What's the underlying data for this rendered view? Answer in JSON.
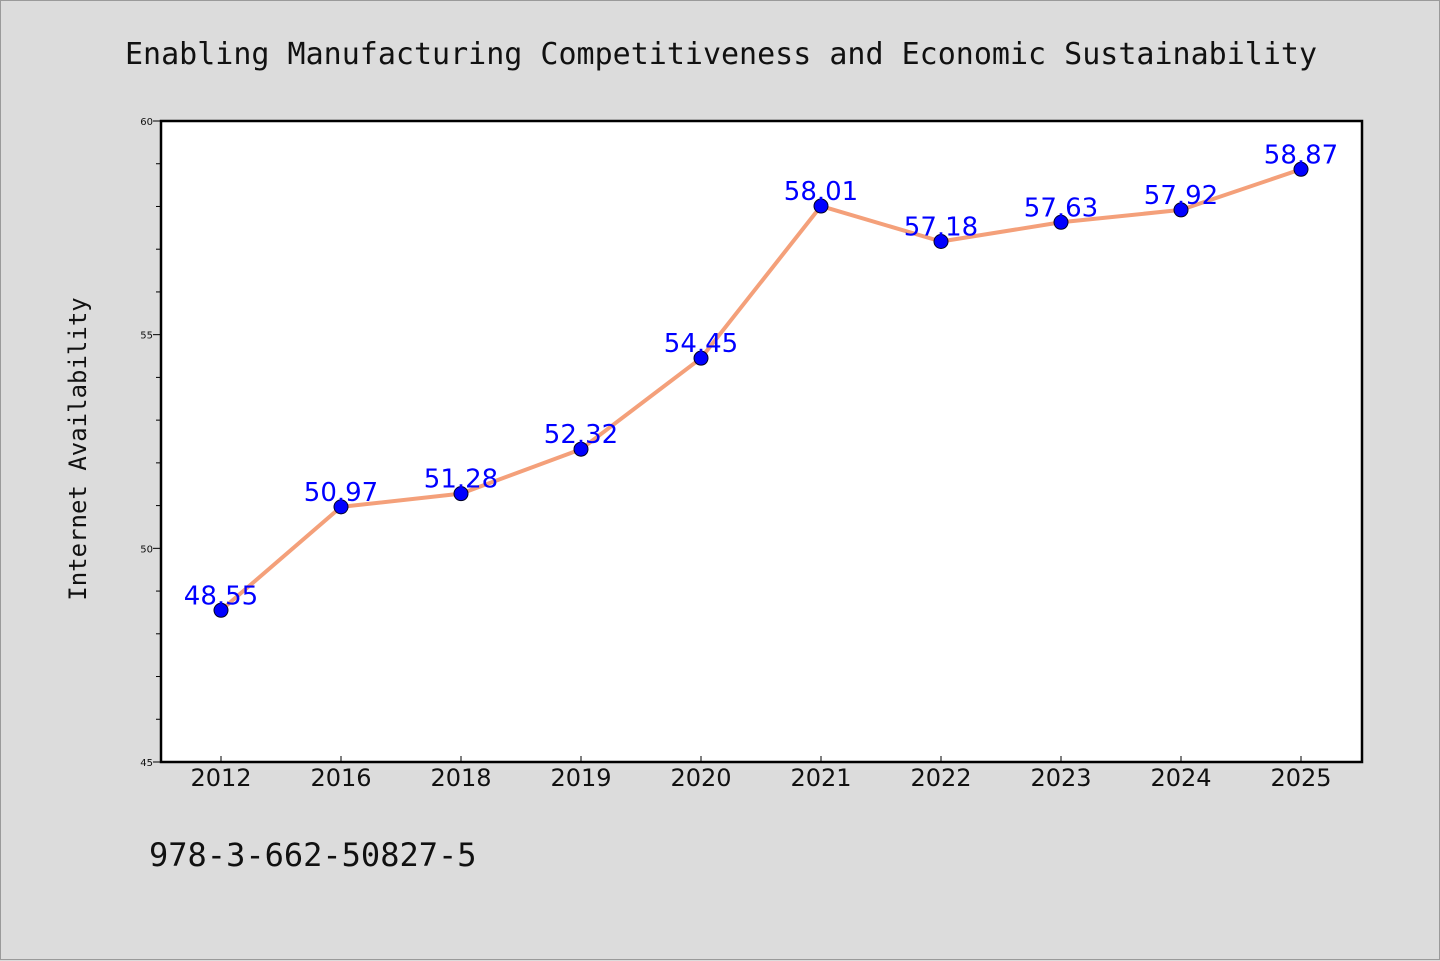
{
  "chart_data": {
    "type": "line",
    "title": "Enabling Manufacturing Competitiveness and Economic Sustainability",
    "xlabel": "",
    "ylabel": "Internet Availability",
    "categories": [
      "2012",
      "2016",
      "2018",
      "2019",
      "2020",
      "2021",
      "2022",
      "2023",
      "2024",
      "2025"
    ],
    "series": [
      {
        "values": [
          48.55,
          50.97,
          51.28,
          52.32,
          54.45,
          58.01,
          57.18,
          57.63,
          57.92,
          58.87
        ],
        "labels": [
          "48.55",
          "50.97",
          "51.28",
          "52.32",
          "54.45",
          "58.01",
          "57.18",
          "57.63",
          "57.92",
          "58.87"
        ],
        "line_color": "#f4a07a",
        "marker_color": "#0000ff"
      }
    ],
    "ylim": [
      45,
      60
    ],
    "yticks": [
      "45",
      "50",
      "55",
      "60"
    ],
    "y_minor_step": 1,
    "grid": false,
    "legend": "none",
    "colors": {
      "background": "#dcdcdc",
      "plot_background": "#ffffff",
      "data_label": "#0000ff"
    }
  },
  "footer": {
    "isbn": "978-3-662-50827-5"
  }
}
